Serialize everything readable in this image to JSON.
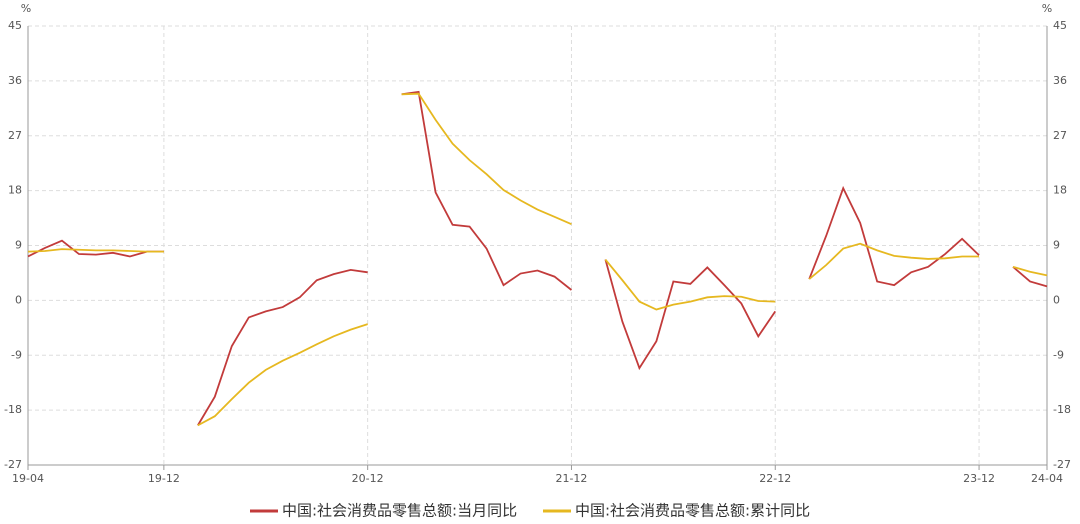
{
  "chart_data": {
    "type": "line",
    "y_unit": "%",
    "categories": [
      "19-04",
      null,
      null,
      null,
      null,
      null,
      null,
      null,
      "19-12",
      null,
      null,
      null,
      null,
      null,
      null,
      null,
      null,
      null,
      null,
      null,
      "20-12",
      null,
      null,
      null,
      null,
      null,
      null,
      null,
      null,
      null,
      null,
      null,
      "21-12",
      null,
      null,
      null,
      null,
      null,
      null,
      null,
      null,
      null,
      null,
      null,
      "22-12",
      null,
      null,
      null,
      null,
      null,
      null,
      null,
      null,
      null,
      null,
      null,
      "23-12",
      null,
      null,
      null,
      "24-04"
    ],
    "series": [
      {
        "name": "中国:社会消费品零售总额:当月同比",
        "color": "#c23b3b",
        "values": [
          7.2,
          8.6,
          9.8,
          7.6,
          7.5,
          7.8,
          7.2,
          8.0,
          8.0,
          null,
          -20.5,
          -15.8,
          -7.5,
          -2.8,
          -1.8,
          -1.1,
          0.5,
          3.3,
          4.3,
          5.0,
          4.6,
          null,
          33.8,
          34.2,
          17.7,
          12.4,
          12.1,
          8.5,
          2.5,
          4.4,
          4.9,
          3.9,
          1.7,
          null,
          6.7,
          -3.5,
          -11.1,
          -6.7,
          3.1,
          2.7,
          5.4,
          2.5,
          -0.5,
          -5.9,
          -1.8,
          null,
          3.5,
          10.6,
          18.4,
          12.7,
          3.1,
          2.5,
          4.6,
          5.5,
          7.6,
          10.1,
          7.4,
          null,
          5.5,
          3.1,
          2.3
        ]
      },
      {
        "name": "中国:社会消费品零售总额:累计同比",
        "color": "#e6b820",
        "values": [
          8.0,
          8.1,
          8.4,
          8.3,
          8.2,
          8.2,
          8.1,
          8.0,
          8.0,
          null,
          -20.5,
          -19.0,
          -16.2,
          -13.5,
          -11.4,
          -9.9,
          -8.6,
          -7.2,
          -5.9,
          -4.8,
          -3.9,
          null,
          33.8,
          33.9,
          29.6,
          25.7,
          23.0,
          20.7,
          18.1,
          16.4,
          14.9,
          13.7,
          12.5,
          null,
          6.7,
          3.3,
          -0.2,
          -1.5,
          -0.7,
          -0.2,
          0.5,
          0.7,
          0.6,
          -0.1,
          -0.2,
          null,
          3.5,
          5.8,
          8.5,
          9.3,
          8.2,
          7.3,
          7.0,
          6.8,
          6.9,
          7.2,
          7.2,
          null,
          5.5,
          4.7,
          4.1
        ]
      }
    ],
    "ylim": [
      -27,
      45
    ],
    "yticks": [
      -27,
      -18,
      -9,
      0,
      9,
      18,
      27,
      36,
      45
    ],
    "grid": true,
    "legend": "bottom"
  }
}
